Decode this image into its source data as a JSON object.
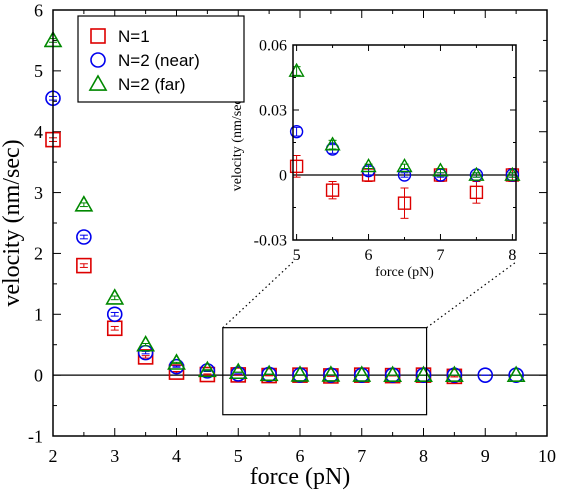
{
  "chart_data": [
    {
      "id": "main",
      "type": "scatter",
      "xlabel": "force (pN)",
      "ylabel": "velocity (nm/sec)",
      "xlim": [
        2,
        10
      ],
      "ylim": [
        -1,
        6
      ],
      "xticks": [
        2,
        3,
        4,
        5,
        6,
        7,
        8,
        9,
        10
      ],
      "yticks": [
        -1,
        0,
        1,
        2,
        3,
        4,
        5,
        6
      ],
      "zero_line": true,
      "legend_position": "top-left",
      "zoom_region": {
        "x": [
          4.75,
          8.05
        ],
        "y": [
          -0.65,
          0.78
        ]
      },
      "series": [
        {
          "name": "N=1",
          "marker": "square",
          "color": "#dd0000",
          "points": [
            [
              2.0,
              3.87
            ],
            [
              2.5,
              1.8
            ],
            [
              3.0,
              0.77
            ],
            [
              3.5,
              0.3
            ],
            [
              4.0,
              0.05
            ],
            [
              4.5,
              0.01
            ],
            [
              5.0,
              0.004
            ],
            [
              5.5,
              -0.007
            ],
            [
              6.0,
              0.0
            ],
            [
              6.5,
              -0.013
            ],
            [
              7.0,
              0.0
            ],
            [
              7.5,
              -0.008
            ],
            [
              8.0,
              0.0
            ],
            [
              8.5,
              -0.02
            ]
          ],
          "errors": [
            0.03,
            0.03,
            0.03,
            0.02,
            0.01,
            0.01,
            0.005,
            0.004,
            0.003,
            0.007,
            0.003,
            0.005,
            0.003,
            0.01
          ]
        },
        {
          "name": "N=2 (near)",
          "marker": "circle",
          "color": "#0000ee",
          "points": [
            [
              2.0,
              4.55
            ],
            [
              2.5,
              2.27
            ],
            [
              3.0,
              1.0
            ],
            [
              3.5,
              0.37
            ],
            [
              4.0,
              0.14
            ],
            [
              4.5,
              0.07
            ],
            [
              5.0,
              0.02
            ],
            [
              5.5,
              0.012
            ],
            [
              6.0,
              0.002
            ],
            [
              6.5,
              0.0
            ],
            [
              7.0,
              0.0
            ],
            [
              7.5,
              0.0
            ],
            [
              8.0,
              0.0
            ],
            [
              8.5,
              0.0
            ],
            [
              9.0,
              0.0
            ],
            [
              9.5,
              0.0
            ]
          ],
          "errors": [
            0.03,
            0.03,
            0.03,
            0.02,
            0.01,
            0.01,
            0.002,
            0.002,
            0.002,
            0.001,
            0.001,
            0.001,
            0.001,
            0.001,
            0.001,
            0.001
          ]
        },
        {
          "name": "N=2 (far)",
          "marker": "triangle",
          "color": "#008800",
          "points": [
            [
              2.0,
              5.5
            ],
            [
              2.5,
              2.8
            ],
            [
              3.0,
              1.27
            ],
            [
              3.5,
              0.5
            ],
            [
              4.0,
              0.2
            ],
            [
              4.5,
              0.08
            ],
            [
              5.0,
              0.048
            ],
            [
              5.5,
              0.014
            ],
            [
              6.0,
              0.004
            ],
            [
              6.5,
              0.004
            ],
            [
              7.0,
              0.002
            ],
            [
              7.5,
              0.0
            ],
            [
              8.0,
              0.0
            ],
            [
              8.5,
              0.0
            ],
            [
              9.5,
              0.0
            ]
          ],
          "errors": [
            0.03,
            0.03,
            0.03,
            0.02,
            0.01,
            0.01,
            0.002,
            0.002,
            0.001,
            0.001,
            0.001,
            0.001,
            0.001,
            0.001,
            0.001
          ]
        }
      ]
    },
    {
      "id": "inset",
      "type": "scatter",
      "xlabel": "force (pN)",
      "ylabel": "velocity (nm/sec)",
      "xlim": [
        4.95,
        8.05
      ],
      "ylim": [
        -0.03,
        0.06
      ],
      "xticks": [
        5,
        6,
        7,
        8
      ],
      "yticks": [
        -0.03,
        0,
        0.03,
        0.06
      ],
      "ytick_labels": [
        "-0.03",
        "0",
        "0.03",
        "0.06"
      ],
      "zero_line": true,
      "series_from": "main"
    }
  ]
}
